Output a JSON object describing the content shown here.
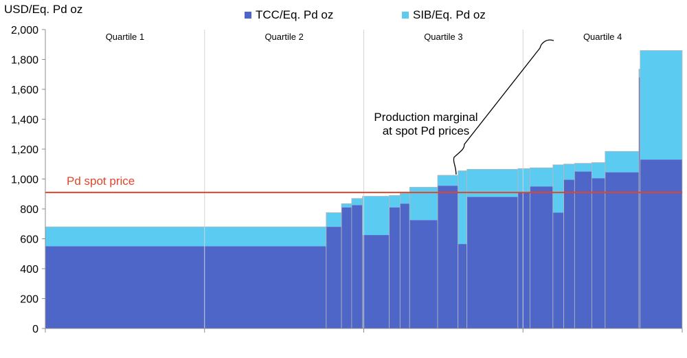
{
  "chart_data": {
    "type": "bar",
    "subtype": "cost-curve-stacked",
    "y_unit_label": "USD/Eq. Pd oz",
    "ylim": [
      0,
      2000
    ],
    "yticks": [
      0,
      200,
      400,
      600,
      800,
      1000,
      1200,
      1400,
      1600,
      1800,
      2000
    ],
    "ytick_labels": [
      "0",
      "200",
      "400",
      "600",
      "800",
      "1,000",
      "1,200",
      "1,400",
      "1,600",
      "1,800",
      "2,000"
    ],
    "x_range": [
      0,
      100
    ],
    "grid": false,
    "legend": [
      {
        "name": "TCC/Eq. Pd oz",
        "color": "#4f66c9"
      },
      {
        "name": "SIB/Eq. Pd oz",
        "color": "#5bcbf2"
      }
    ],
    "quartiles": [
      {
        "label": "Quartile 1",
        "start": 0,
        "end": 25
      },
      {
        "label": "Quartile 2",
        "start": 25,
        "end": 50
      },
      {
        "label": "Quartile 3",
        "start": 50,
        "end": 75
      },
      {
        "label": "Quartile 4",
        "start": 75,
        "end": 100
      }
    ],
    "bars": [
      {
        "x0": 0.0,
        "x1": 44.1,
        "tcc": 550,
        "total": 680
      },
      {
        "x0": 44.1,
        "x1": 46.5,
        "tcc": 680,
        "total": 775
      },
      {
        "x0": 46.5,
        "x1": 48.1,
        "tcc": 810,
        "total": 835
      },
      {
        "x0": 48.1,
        "x1": 49.8,
        "tcc": 825,
        "total": 870
      },
      {
        "x0": 49.8,
        "x1": 54.0,
        "tcc": 625,
        "total": 885
      },
      {
        "x0": 54.0,
        "x1": 55.7,
        "tcc": 810,
        "total": 890
      },
      {
        "x0": 55.7,
        "x1": 57.2,
        "tcc": 835,
        "total": 905
      },
      {
        "x0": 57.2,
        "x1": 61.6,
        "tcc": 725,
        "total": 945
      },
      {
        "x0": 61.6,
        "x1": 64.8,
        "tcc": 955,
        "total": 1025
      },
      {
        "x0": 64.8,
        "x1": 66.2,
        "tcc": 565,
        "total": 1055
      },
      {
        "x0": 66.2,
        "x1": 74.2,
        "tcc": 880,
        "total": 1065
      },
      {
        "x0": 74.2,
        "x1": 76.1,
        "tcc": 910,
        "total": 1070
      },
      {
        "x0": 76.1,
        "x1": 79.7,
        "tcc": 950,
        "total": 1075
      },
      {
        "x0": 79.7,
        "x1": 81.4,
        "tcc": 775,
        "total": 1095
      },
      {
        "x0": 81.4,
        "x1": 83.1,
        "tcc": 995,
        "total": 1100
      },
      {
        "x0": 83.1,
        "x1": 85.8,
        "tcc": 1050,
        "total": 1105
      },
      {
        "x0": 85.8,
        "x1": 87.9,
        "tcc": 1005,
        "total": 1110
      },
      {
        "x0": 87.9,
        "x1": 93.2,
        "tcc": 1045,
        "total": 1185
      },
      {
        "x0": 93.2,
        "x1": 93.4,
        "tcc": 1680,
        "total": 1735
      },
      {
        "x0": 93.4,
        "x1": 100.0,
        "tcc": 1130,
        "total": 1860
      }
    ],
    "spot_price": {
      "value": 910,
      "label": "Pd spot price",
      "color": "#e0452a"
    },
    "annotation": {
      "lines": [
        "Production marginal",
        "at spot Pd prices"
      ],
      "x": 64.5,
      "y": 1030
    }
  }
}
